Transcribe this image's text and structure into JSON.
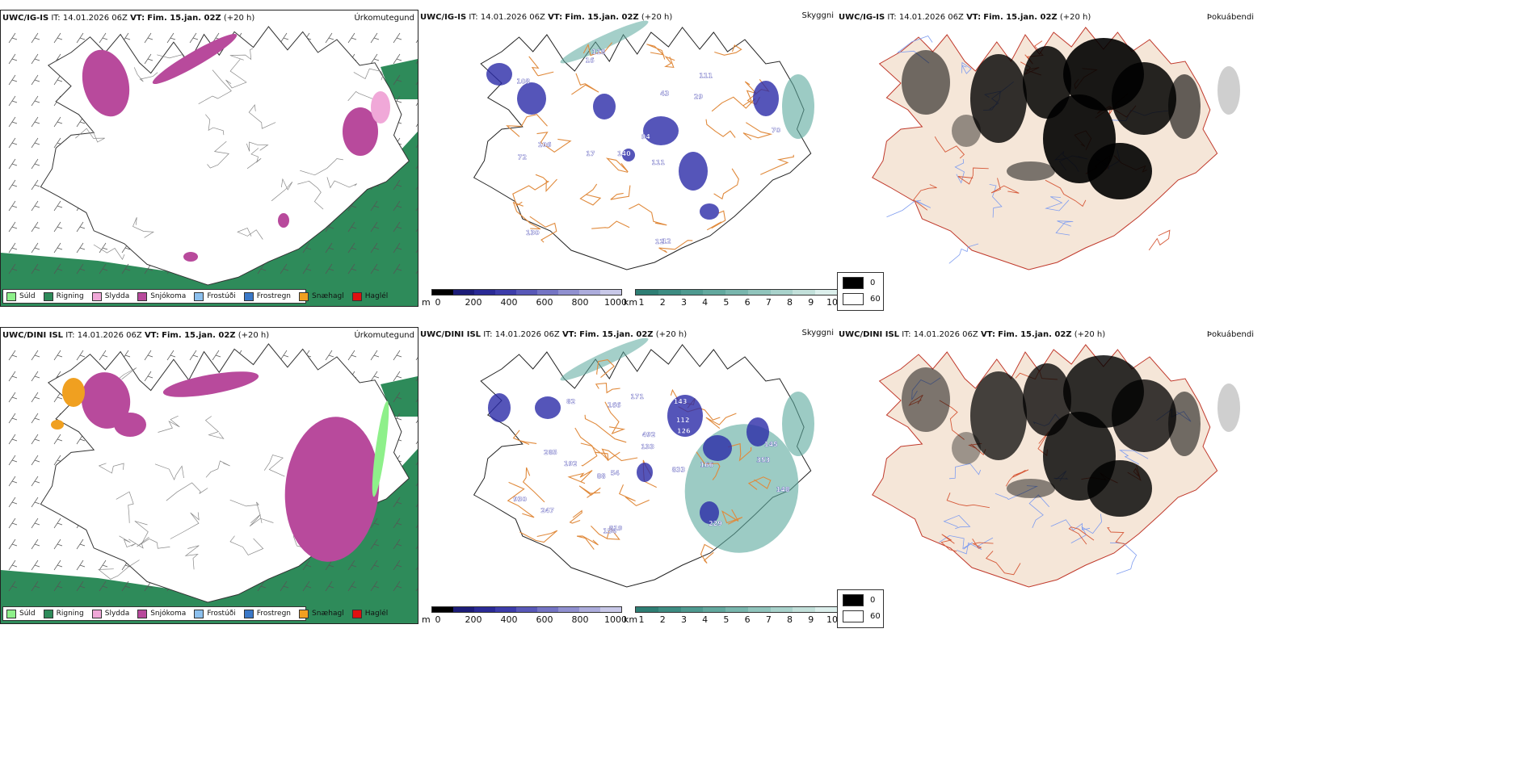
{
  "rows": [
    {
      "model": "UWC/IG-IS",
      "it_label": "IT:",
      "it_value": "14.01.2026 06Z",
      "vt_label": "VT:",
      "vt_value": "Fim. 15.jan. 02Z",
      "lead": "(+20 h)"
    },
    {
      "model": "UWC/DINI ISL",
      "it_label": "IT:",
      "it_value": "14.01.2026 06Z",
      "vt_label": "VT:",
      "vt_value": "Fim. 15.jan. 02Z",
      "lead": "(+20 h)"
    }
  ],
  "titles": {
    "precip": "Úrkomutegund",
    "visibility": "Skyggni",
    "cloud": "Þokuábendi"
  },
  "precip_legend": [
    {
      "label": "Súld",
      "color": "#8ef08a"
    },
    {
      "label": "Rigning",
      "color": "#2e8b5a"
    },
    {
      "label": "Slydda",
      "color": "#f0a8d8"
    },
    {
      "label": "Snjókoma",
      "color": "#b84a9c"
    },
    {
      "label": "Frostúði",
      "color": "#8cc0ee"
    },
    {
      "label": "Frostregn",
      "color": "#3a78c8"
    },
    {
      "label": "Snæhagl",
      "color": "#f0a020"
    },
    {
      "label": "Haglél",
      "color": "#e01010"
    }
  ],
  "ceiling_scale": {
    "unit": "m",
    "ticks": [
      "0",
      "200",
      "400",
      "600",
      "800",
      "1000"
    ],
    "colors": [
      "#000000",
      "#1c1c78",
      "#2a2a96",
      "#3c3caa",
      "#5858b8",
      "#7474c4",
      "#9090d0",
      "#acacdc",
      "#c8c8e8"
    ]
  },
  "visibility_scale": {
    "unit": "km",
    "ticks": [
      "1",
      "2",
      "3",
      "4",
      "5",
      "6",
      "7",
      "8",
      "9",
      "10"
    ],
    "colors": [
      "#2e7e74",
      "#3d8c82",
      "#4e9a90",
      "#62a89e",
      "#78b6ad",
      "#90c4bc",
      "#a8d2cb",
      "#c2e0da",
      "#dcefec"
    ]
  },
  "cloud_legend": {
    "low": "0",
    "high": "60"
  },
  "map_labels": {
    "top": [
      "118",
      "111",
      "70",
      "140",
      "111",
      "106",
      "108",
      "29",
      "72",
      "43",
      "94",
      "130",
      "16",
      "17",
      "12",
      "12"
    ],
    "bottom": [
      "154",
      "492",
      "353",
      "145",
      "88",
      "166",
      "112",
      "54",
      "133",
      "229",
      "148",
      "833",
      "126",
      "171",
      "166",
      "143",
      "285",
      "247",
      "930",
      "819",
      "192",
      "82"
    ]
  },
  "colors": {
    "rain": "#2e8b5a",
    "snow": "#b84a9c",
    "sleet": "#f0a8d8",
    "drizzle": "#8ef08a",
    "snowpellet": "#f0a020",
    "ceiling": "#2a2aa8",
    "visibility": "#5aa89c",
    "road": "#e08a3c",
    "land": "#f5e6d8",
    "river": "#7f9df0"
  }
}
